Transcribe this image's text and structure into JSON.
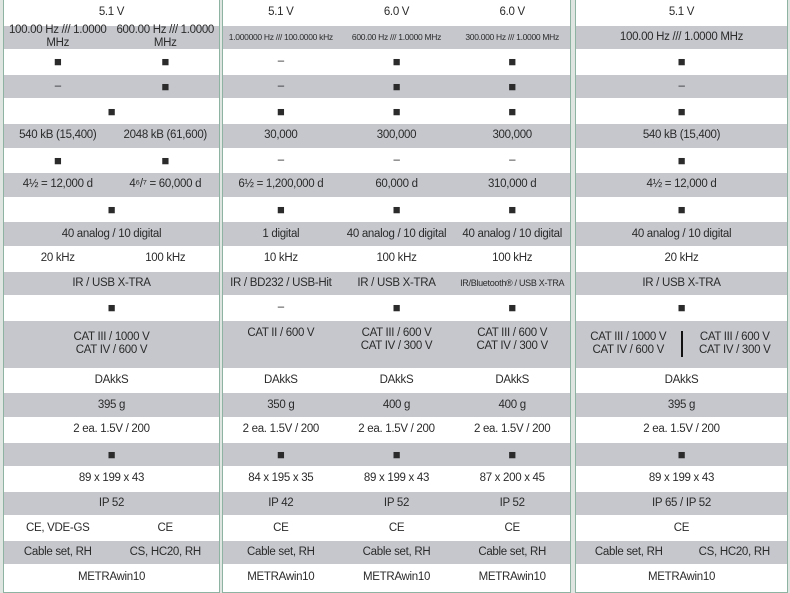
{
  "row_shading": [
    "w",
    "g",
    "w",
    "g",
    "w",
    "g",
    "w",
    "g",
    "w",
    "g",
    "w",
    "g",
    "w",
    "g",
    "w",
    "g",
    "w",
    "g",
    "w",
    "g",
    "w",
    "g",
    "w"
  ],
  "tall_row_index": 13,
  "panels": [
    {
      "rows": [
        [
          "5.1 V"
        ],
        [
          "100.00 Hz /// 1.0000 MHz",
          "600.00 Hz /// 1.0000 MHz"
        ],
        [
          "■",
          "■"
        ],
        [
          "–",
          "■"
        ],
        [
          "■"
        ],
        [
          "540 kB (15,400)",
          "2048 kB (61,600)"
        ],
        [
          "■",
          "■"
        ],
        [
          "4½ = 12,000 d",
          "4⁶/⁷ = 60,000 d"
        ],
        [
          "■"
        ],
        [
          "40 analog / 10 digital"
        ],
        [
          "20 kHz",
          "100 kHz"
        ],
        [
          "IR / USB X-TRA"
        ],
        [
          "■"
        ],
        [
          "CAT III / 1000 V\nCAT IV / 600 V"
        ],
        [
          "DAkkS"
        ],
        [
          "395 g"
        ],
        [
          "2 ea. 1.5V / 200"
        ],
        [
          "■"
        ],
        [
          "89 x 199 x 43"
        ],
        [
          "IP 52"
        ],
        [
          "CE, VDE-GS",
          "CE"
        ],
        [
          "Cable set, RH",
          "CS, HC20, RH"
        ],
        [
          "METRAwin10"
        ]
      ]
    },
    {
      "rows": [
        [
          "5.1 V",
          "6.0 V",
          "6.0 V"
        ],
        [
          "1.000000 Hz /// 100.0000 kHz",
          "600.00 Hz /// 1.0000 MHz",
          "300.000 Hz /// 1.0000 MHz"
        ],
        [
          "–",
          "■",
          "■"
        ],
        [
          "–",
          "■",
          "■"
        ],
        [
          "■",
          "■",
          "■"
        ],
        [
          "30,000",
          "300,000",
          "300,000"
        ],
        [
          "–",
          "–",
          "–"
        ],
        [
          "6½ = 1,200,000 d",
          "60,000 d",
          "310,000 d"
        ],
        [
          "■",
          "■",
          "■"
        ],
        [
          "1 digital",
          "40 analog / 10 digital",
          "40 analog / 10 digital"
        ],
        [
          "10 kHz",
          "100 kHz",
          "100 kHz"
        ],
        [
          "IR / BD232 / USB-Hit",
          "IR / USB X-TRA",
          "IR/Bluetooth® / USB X-TRA"
        ],
        [
          "–",
          "■",
          "■"
        ],
        [
          "CAT II / 600 V",
          "CAT III / 600 V\nCAT IV / 300 V",
          "CAT III / 600 V\nCAT IV / 300 V"
        ],
        [
          "DAkkS",
          "DAkkS",
          "DAkkS"
        ],
        [
          "350 g",
          "400 g",
          "400 g"
        ],
        [
          "2 ea. 1.5V / 200",
          "2 ea. 1.5V / 200",
          "2 ea. 1.5V / 200"
        ],
        [
          "■",
          "■",
          "■"
        ],
        [
          "84 x 195 x 35",
          "89 x 199 x 43",
          "87 x 200 x 45"
        ],
        [
          "IP 42",
          "IP 52",
          "IP 52"
        ],
        [
          "CE",
          "CE",
          "CE"
        ],
        [
          "Cable set, RH",
          "Cable set, RH",
          "Cable set, RH"
        ],
        [
          "METRAwin10",
          "METRAwin10",
          "METRAwin10"
        ]
      ]
    },
    {
      "rows": [
        [
          "5.1 V"
        ],
        [
          "100.00 Hz /// 1.0000 MHz"
        ],
        [
          "■"
        ],
        [
          "–"
        ],
        [
          "■"
        ],
        [
          "540 kB (15,400)"
        ],
        [
          "■"
        ],
        [
          "4½ = 12,000 d"
        ],
        [
          "■"
        ],
        [
          "40 analog / 10 digital"
        ],
        [
          "20 kHz"
        ],
        [
          "IR / USB X-TRA"
        ],
        [
          "■"
        ],
        [
          "CAT III / 1000 V\nCAT IV / 600 V",
          "CAT III / 600 V\nCAT IV / 300 V"
        ],
        [
          "DAkkS"
        ],
        [
          "395 g"
        ],
        [
          "2 ea. 1.5V / 200"
        ],
        [
          "■"
        ],
        [
          "89 x 199 x 43"
        ],
        [
          "IP 65 / IP 52"
        ],
        [
          "CE"
        ],
        [
          "Cable set, RH",
          "CS, HC20, RH"
        ],
        [
          "METRAwin10"
        ]
      ]
    }
  ]
}
